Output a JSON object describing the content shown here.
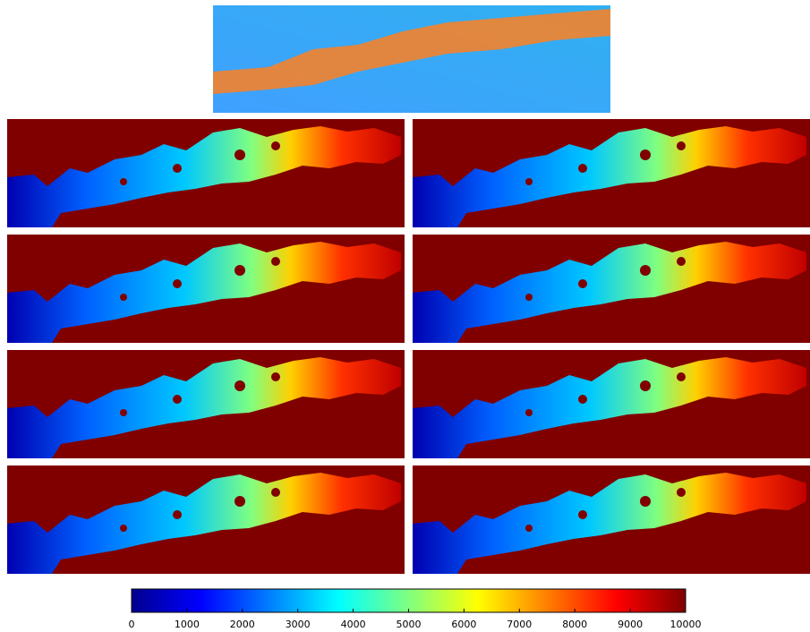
{
  "colorbar": {
    "lim": [
      0,
      10000
    ],
    "ticks": [
      0,
      1000,
      2000,
      3000,
      4000,
      5000,
      6000,
      7000,
      8000,
      9000,
      10000
    ]
  }
}
